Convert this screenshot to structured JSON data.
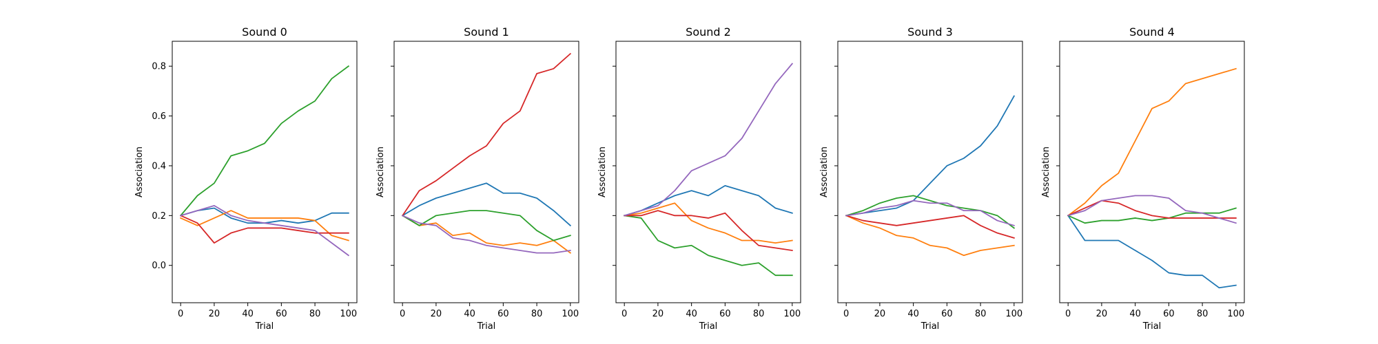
{
  "chart_data": [
    {
      "type": "line",
      "title": "Sound 0",
      "xlabel": "Trial",
      "ylabel": "Association",
      "xlim": [
        -5,
        105
      ],
      "ylim": [
        -0.15,
        0.9
      ],
      "xticks": [
        "0",
        "20",
        "40",
        "60",
        "80",
        "100"
      ],
      "yticks": [
        "0.0",
        "0.2",
        "0.4",
        "0.6",
        "0.8"
      ],
      "show_y_tick_labels": true,
      "grid": false,
      "x": [
        0,
        10,
        20,
        30,
        40,
        50,
        60,
        70,
        80,
        90,
        100
      ],
      "series": [
        {
          "color": "#1f77b4",
          "values": [
            0.2,
            0.22,
            0.23,
            0.19,
            0.17,
            0.17,
            0.18,
            0.17,
            0.18,
            0.21,
            0.21
          ]
        },
        {
          "color": "#ff7f0e",
          "values": [
            0.19,
            0.16,
            0.19,
            0.22,
            0.19,
            0.19,
            0.19,
            0.19,
            0.18,
            0.12,
            0.1
          ]
        },
        {
          "color": "#2ca02c",
          "values": [
            0.2,
            0.28,
            0.33,
            0.44,
            0.46,
            0.49,
            0.57,
            0.62,
            0.66,
            0.75,
            0.8
          ]
        },
        {
          "color": "#d62728",
          "values": [
            0.2,
            0.17,
            0.09,
            0.13,
            0.15,
            0.15,
            0.15,
            0.14,
            0.13,
            0.13,
            0.13
          ]
        },
        {
          "color": "#9467bd",
          "values": [
            0.2,
            0.22,
            0.24,
            0.2,
            0.18,
            0.17,
            0.16,
            0.15,
            0.14,
            0.09,
            0.04
          ]
        }
      ]
    },
    {
      "type": "line",
      "title": "Sound 1",
      "xlabel": "Trial",
      "ylabel": "Association",
      "xlim": [
        -5,
        105
      ],
      "ylim": [
        -0.15,
        0.9
      ],
      "xticks": [
        "0",
        "20",
        "40",
        "60",
        "80",
        "100"
      ],
      "yticks": [
        "0.0",
        "0.2",
        "0.4",
        "0.6",
        "0.8"
      ],
      "show_y_tick_labels": false,
      "grid": false,
      "x": [
        0,
        10,
        20,
        30,
        40,
        50,
        60,
        70,
        80,
        90,
        100
      ],
      "series": [
        {
          "color": "#1f77b4",
          "values": [
            0.2,
            0.24,
            0.27,
            0.29,
            0.31,
            0.33,
            0.29,
            0.29,
            0.27,
            0.22,
            0.16
          ]
        },
        {
          "color": "#ff7f0e",
          "values": [
            0.2,
            0.16,
            0.17,
            0.12,
            0.13,
            0.09,
            0.08,
            0.09,
            0.08,
            0.1,
            0.05
          ]
        },
        {
          "color": "#2ca02c",
          "values": [
            0.2,
            0.16,
            0.2,
            0.21,
            0.22,
            0.22,
            0.21,
            0.2,
            0.14,
            0.1,
            0.12
          ]
        },
        {
          "color": "#d62728",
          "values": [
            0.2,
            0.3,
            0.34,
            0.39,
            0.44,
            0.48,
            0.57,
            0.62,
            0.77,
            0.79,
            0.85
          ]
        },
        {
          "color": "#9467bd",
          "values": [
            0.2,
            0.17,
            0.16,
            0.11,
            0.1,
            0.08,
            0.07,
            0.06,
            0.05,
            0.05,
            0.06
          ]
        }
      ]
    },
    {
      "type": "line",
      "title": "Sound 2",
      "xlabel": "Trial",
      "ylabel": "Association",
      "xlim": [
        -5,
        105
      ],
      "ylim": [
        -0.15,
        0.9
      ],
      "xticks": [
        "0",
        "20",
        "40",
        "60",
        "80",
        "100"
      ],
      "yticks": [
        "0.0",
        "0.2",
        "0.4",
        "0.6",
        "0.8"
      ],
      "show_y_tick_labels": false,
      "grid": false,
      "x": [
        0,
        10,
        20,
        30,
        40,
        50,
        60,
        70,
        80,
        90,
        100
      ],
      "series": [
        {
          "color": "#1f77b4",
          "values": [
            0.2,
            0.22,
            0.25,
            0.28,
            0.3,
            0.28,
            0.32,
            0.3,
            0.28,
            0.23,
            0.21
          ]
        },
        {
          "color": "#ff7f0e",
          "values": [
            0.2,
            0.21,
            0.23,
            0.25,
            0.18,
            0.15,
            0.13,
            0.1,
            0.1,
            0.09,
            0.1
          ]
        },
        {
          "color": "#2ca02c",
          "values": [
            0.2,
            0.19,
            0.1,
            0.07,
            0.08,
            0.04,
            0.02,
            0.0,
            0.01,
            -0.04,
            -0.04
          ]
        },
        {
          "color": "#d62728",
          "values": [
            0.2,
            0.2,
            0.22,
            0.2,
            0.2,
            0.19,
            0.21,
            0.14,
            0.08,
            0.07,
            0.06
          ]
        },
        {
          "color": "#9467bd",
          "values": [
            0.2,
            0.22,
            0.24,
            0.3,
            0.38,
            0.41,
            0.44,
            0.51,
            0.62,
            0.73,
            0.81
          ]
        }
      ]
    },
    {
      "type": "line",
      "title": "Sound 3",
      "xlabel": "Trial",
      "ylabel": "Association",
      "xlim": [
        -5,
        105
      ],
      "ylim": [
        -0.15,
        0.9
      ],
      "xticks": [
        "0",
        "20",
        "40",
        "60",
        "80",
        "100"
      ],
      "yticks": [
        "0.0",
        "0.2",
        "0.4",
        "0.6",
        "0.8"
      ],
      "show_y_tick_labels": false,
      "grid": false,
      "x": [
        0,
        10,
        20,
        30,
        40,
        50,
        60,
        70,
        80,
        90,
        100
      ],
      "series": [
        {
          "color": "#1f77b4",
          "values": [
            0.2,
            0.21,
            0.22,
            0.23,
            0.26,
            0.33,
            0.4,
            0.43,
            0.48,
            0.56,
            0.68
          ]
        },
        {
          "color": "#ff7f0e",
          "values": [
            0.2,
            0.17,
            0.15,
            0.12,
            0.11,
            0.08,
            0.07,
            0.04,
            0.06,
            0.07,
            0.08
          ]
        },
        {
          "color": "#2ca02c",
          "values": [
            0.2,
            0.22,
            0.25,
            0.27,
            0.28,
            0.26,
            0.24,
            0.23,
            0.22,
            0.2,
            0.15
          ]
        },
        {
          "color": "#d62728",
          "values": [
            0.2,
            0.18,
            0.17,
            0.16,
            0.17,
            0.18,
            0.19,
            0.2,
            0.16,
            0.13,
            0.11
          ]
        },
        {
          "color": "#9467bd",
          "values": [
            0.2,
            0.21,
            0.23,
            0.24,
            0.26,
            0.25,
            0.25,
            0.22,
            0.22,
            0.18,
            0.16
          ]
        }
      ]
    },
    {
      "type": "line",
      "title": "Sound 4",
      "xlabel": "Trial",
      "ylabel": "Association",
      "xlim": [
        -5,
        105
      ],
      "ylim": [
        -0.15,
        0.9
      ],
      "xticks": [
        "0",
        "20",
        "40",
        "60",
        "80",
        "100"
      ],
      "yticks": [
        "0.0",
        "0.2",
        "0.4",
        "0.6",
        "0.8"
      ],
      "show_y_tick_labels": false,
      "grid": false,
      "x": [
        0,
        10,
        20,
        30,
        40,
        50,
        60,
        70,
        80,
        90,
        100
      ],
      "series": [
        {
          "color": "#1f77b4",
          "values": [
            0.2,
            0.1,
            0.1,
            0.1,
            0.06,
            0.02,
            -0.03,
            -0.04,
            -0.04,
            -0.09,
            -0.08
          ]
        },
        {
          "color": "#ff7f0e",
          "values": [
            0.2,
            0.25,
            0.32,
            0.37,
            0.5,
            0.63,
            0.66,
            0.73,
            0.75,
            0.77,
            0.79
          ]
        },
        {
          "color": "#2ca02c",
          "values": [
            0.2,
            0.17,
            0.18,
            0.18,
            0.19,
            0.18,
            0.19,
            0.21,
            0.21,
            0.21,
            0.23
          ]
        },
        {
          "color": "#d62728",
          "values": [
            0.2,
            0.23,
            0.26,
            0.25,
            0.22,
            0.2,
            0.19,
            0.19,
            0.19,
            0.19,
            0.19
          ]
        },
        {
          "color": "#9467bd",
          "values": [
            0.2,
            0.22,
            0.26,
            0.27,
            0.28,
            0.28,
            0.27,
            0.22,
            0.21,
            0.19,
            0.17
          ]
        }
      ]
    }
  ]
}
